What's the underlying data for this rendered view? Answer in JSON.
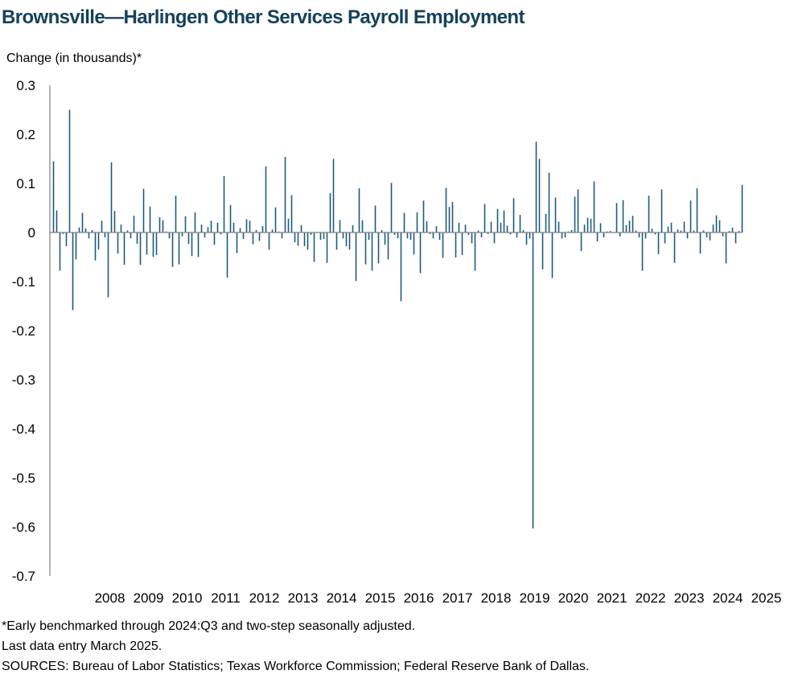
{
  "title": "Brownsville—Harlingen Other Services Payroll Employment",
  "footnotes": {
    "note": "*Early benchmarked through 2024:Q3 and two-step seasonally adjusted.",
    "last_entry": "Last data entry March 2025.",
    "sources": "SOURCES: Bureau of Labor Statistics; Texas Workforce Commission; Federal Reserve Bank of Dallas."
  },
  "colors": {
    "bar": "#1f5a7a",
    "axis": "#808080",
    "title": "#16425b"
  },
  "chart_data": {
    "type": "bar",
    "ylabel": "Change (in thousands)*",
    "ylim": [
      -0.7,
      0.3
    ],
    "yticks": [
      "0.3",
      "0.2",
      "0.1",
      "0",
      "-0.1",
      "-0.2",
      "-0.3",
      "-0.4",
      "-0.5",
      "-0.6",
      "-0.7"
    ],
    "xticks": [
      "2008",
      "2009",
      "2010",
      "2011",
      "2012",
      "2013",
      "2014",
      "2015",
      "2016",
      "2017",
      "2018",
      "2019",
      "2020",
      "2021",
      "2022",
      "2023",
      "2024",
      "2025"
    ],
    "x_start": "2007-01",
    "x_end": "2025-03",
    "frequency": "monthly",
    "values": [
      0.145,
      0.045,
      -0.078,
      -0.003,
      -0.028,
      0.25,
      -0.158,
      -0.055,
      0.01,
      0.04,
      0.008,
      -0.012,
      0.005,
      -0.057,
      -0.035,
      0.024,
      -0.01,
      -0.132,
      0.143,
      0.044,
      -0.043,
      0.016,
      -0.066,
      0.004,
      -0.012,
      0.034,
      -0.023,
      -0.066,
      0.089,
      -0.045,
      0.053,
      -0.05,
      -0.046,
      0.031,
      0.025,
      0.002,
      -0.012,
      -0.07,
      0.075,
      -0.065,
      -0.008,
      0.033,
      -0.023,
      -0.048,
      0.041,
      -0.05,
      0.016,
      -0.01,
      0.011,
      0.024,
      -0.025,
      0.02,
      -0.004,
      0.115,
      -0.092,
      0.056,
      0.02,
      -0.042,
      0.009,
      -0.013,
      0.027,
      0.024,
      -0.024,
      0.005,
      -0.017,
      0.013,
      0.135,
      -0.035,
      0.006,
      0.051,
      0.002,
      -0.012,
      0.154,
      0.028,
      0.076,
      -0.02,
      -0.027,
      0.015,
      -0.028,
      -0.035,
      -0.005,
      -0.06,
      0.001,
      -0.015,
      -0.013,
      -0.062,
      0.08,
      0.15,
      -0.035,
      0.025,
      -0.012,
      -0.028,
      -0.035,
      0.015,
      -0.099,
      0.09,
      0.025,
      -0.065,
      -0.015,
      -0.078,
      0.055,
      -0.063,
      0.005,
      -0.025,
      -0.055,
      0.101,
      -0.005,
      -0.012,
      -0.14,
      0.04,
      -0.012,
      -0.015,
      -0.045,
      0.041,
      -0.083,
      0.065,
      0.023,
      -0.003,
      -0.012,
      0.013,
      -0.015,
      -0.052,
      0.091,
      0.052,
      0.062,
      -0.051,
      0.02,
      -0.046,
      0.016,
      -0.005,
      -0.022,
      -0.078,
      0.004,
      -0.01,
      0.058,
      -0.003,
      0.022,
      -0.022,
      0.048,
      0.02,
      0.045,
      0.014,
      -0.004,
      0.07,
      -0.01,
      0.036,
      0.005,
      -0.025,
      -0.012,
      -0.603,
      0.185,
      0.15,
      -0.075,
      0.038,
      0.122,
      -0.093,
      0.071,
      0.022,
      -0.012,
      -0.01,
      0.002,
      0.005,
      0.073,
      0.088,
      -0.038,
      0.016,
      0.03,
      0.028,
      0.104,
      -0.018,
      0.019,
      -0.01,
      0.002,
      0.003,
      0.001,
      0.06,
      -0.008,
      0.066,
      0.015,
      0.024,
      0.034,
      0.004,
      -0.01,
      -0.078,
      -0.012,
      0.075,
      0.008,
      -0.004,
      -0.044,
      0.088,
      -0.022,
      0.012,
      0.02,
      -0.062,
      0.006,
      0.004,
      0.022,
      -0.012,
      0.065,
      0.004,
      0.09,
      -0.043,
      0.004,
      -0.01,
      -0.016,
      0.016,
      0.035,
      0.025,
      -0.008,
      -0.063,
      0.003,
      0.01,
      -0.022,
      0.003,
      0.097
    ]
  }
}
